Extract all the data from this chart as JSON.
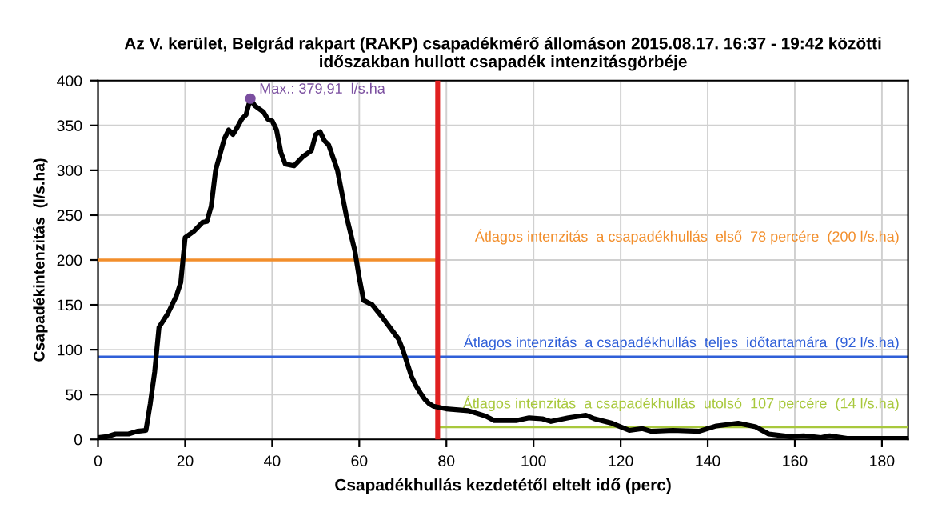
{
  "chart_data": {
    "type": "line",
    "title": "Az V. kerület, Belgrád rakpart (RAKP) csapadékmérő állomáson 2015.08.17. 16:37 - 19:42 közötti\nidőszakban hullott csapadék intenzitásgörbéje",
    "xlabel": "Csapadékhullás kezdetétől eltelt idő (perc)",
    "ylabel": "Csapadékintenzitás  (l/s.ha)",
    "xlim": [
      0,
      186
    ],
    "xticks": [
      0,
      20,
      40,
      60,
      80,
      100,
      120,
      140,
      160,
      180
    ],
    "ylim": [
      0,
      400
    ],
    "yticks": [
      0,
      50,
      100,
      150,
      200,
      250,
      300,
      350,
      400
    ],
    "grid": true,
    "series": [
      {
        "color": "#000000",
        "x": [
          0,
          2,
          4,
          7,
          9,
          11,
          12,
          13,
          14,
          16,
          18,
          19,
          20,
          22,
          24,
          25,
          26,
          27,
          29,
          30,
          31,
          32,
          33,
          34,
          35,
          36,
          38,
          39,
          40,
          41,
          42,
          43,
          45,
          47,
          49,
          50,
          51,
          52,
          53,
          55,
          57,
          59,
          60,
          61,
          63,
          65,
          67,
          69,
          70,
          71,
          72,
          73,
          74,
          75,
          76,
          77,
          80,
          85,
          89,
          91,
          96,
          99,
          102,
          104,
          108,
          112,
          114,
          118,
          122,
          125,
          127,
          132,
          138,
          142,
          147,
          151,
          154,
          159,
          162,
          166,
          168,
          172,
          186
        ],
        "values": [
          2,
          3,
          6,
          6,
          9,
          10,
          40,
          75,
          125,
          140,
          160,
          175,
          225,
          232,
          242,
          243,
          260,
          300,
          335,
          345,
          340,
          348,
          357,
          362,
          380,
          372,
          365,
          357,
          355,
          345,
          320,
          307,
          305,
          315,
          322,
          340,
          343,
          333,
          328,
          300,
          250,
          210,
          180,
          155,
          150,
          138,
          125,
          112,
          100,
          85,
          70,
          60,
          52,
          45,
          40,
          37,
          34,
          32,
          26,
          21,
          21,
          24,
          23,
          20,
          24,
          27,
          23,
          18,
          10,
          12,
          9,
          10,
          9,
          15,
          18,
          14,
          6,
          3,
          4,
          2,
          4,
          1,
          1
        ]
      },
      {
        "type": "line",
        "name": "Átlagos intenzitás  a csapadékhullás  első  78 percére  (200 l/s.ha)",
        "color": "#f28e2b",
        "x": [
          0,
          78
        ],
        "values": [
          200,
          200
        ]
      },
      {
        "type": "line",
        "name": "Átlagos intenzitás  a csapadékhullás  utolsó  107 percére  (14 l/s.ha)",
        "color": "#a8c83c",
        "x": [
          78,
          186
        ],
        "values": [
          14,
          14
        ]
      },
      {
        "type": "scatter",
        "color": "#7b4fa0",
        "x": [
          35
        ],
        "values": [
          379.91
        ]
      }
    ],
    "ref_lines": [
      {
        "axis": "y",
        "value": 92,
        "label": "Átlagos intenzitás  a csapadékhullás  teljes  időtartamára  (92 l/s.ha)",
        "color": "#2f5fd8"
      },
      {
        "axis": "x",
        "value": 78,
        "color": "#e02020"
      }
    ],
    "annotations": [
      {
        "text": "Max.: 379,91  l/s.ha",
        "x": 35,
        "y": 379.91
      }
    ]
  }
}
